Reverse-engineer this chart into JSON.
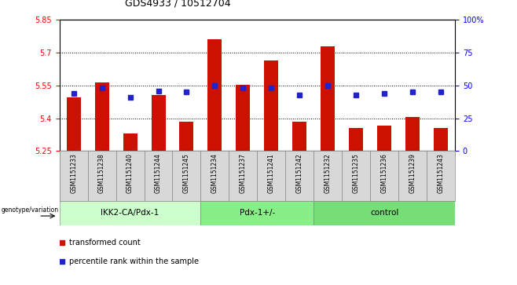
{
  "title": "GDS4933 / 10512704",
  "samples": [
    "GSM1151233",
    "GSM1151238",
    "GSM1151240",
    "GSM1151244",
    "GSM1151245",
    "GSM1151234",
    "GSM1151237",
    "GSM1151241",
    "GSM1151242",
    "GSM1151232",
    "GSM1151235",
    "GSM1151236",
    "GSM1151239",
    "GSM1151243"
  ],
  "red_values": [
    5.495,
    5.565,
    5.33,
    5.505,
    5.385,
    5.76,
    5.555,
    5.665,
    5.385,
    5.73,
    5.355,
    5.365,
    5.405,
    5.355
  ],
  "blue_values": [
    44,
    48,
    41,
    46,
    45,
    50,
    48,
    48,
    43,
    50,
    43,
    44,
    45,
    45
  ],
  "y_min": 5.25,
  "y_max": 5.85,
  "y_ticks_left": [
    5.25,
    5.4,
    5.55,
    5.7,
    5.85
  ],
  "y_ticks_right": [
    0,
    25,
    50,
    75,
    100
  ],
  "group_boundaries": [
    [
      0,
      5,
      "IKK2-CA/Pdx-1"
    ],
    [
      5,
      9,
      "Pdx-1+/-"
    ],
    [
      9,
      14,
      "control"
    ]
  ],
  "group_colors": [
    "#ccffcc",
    "#88ee88",
    "#77dd77"
  ],
  "bar_color": "#cc1100",
  "dot_color": "#2222cc",
  "tick_bg_color": "#d8d8d8",
  "legend_red": "transformed count",
  "legend_blue": "percentile rank within the sample",
  "genotype_label": "genotype/variation"
}
